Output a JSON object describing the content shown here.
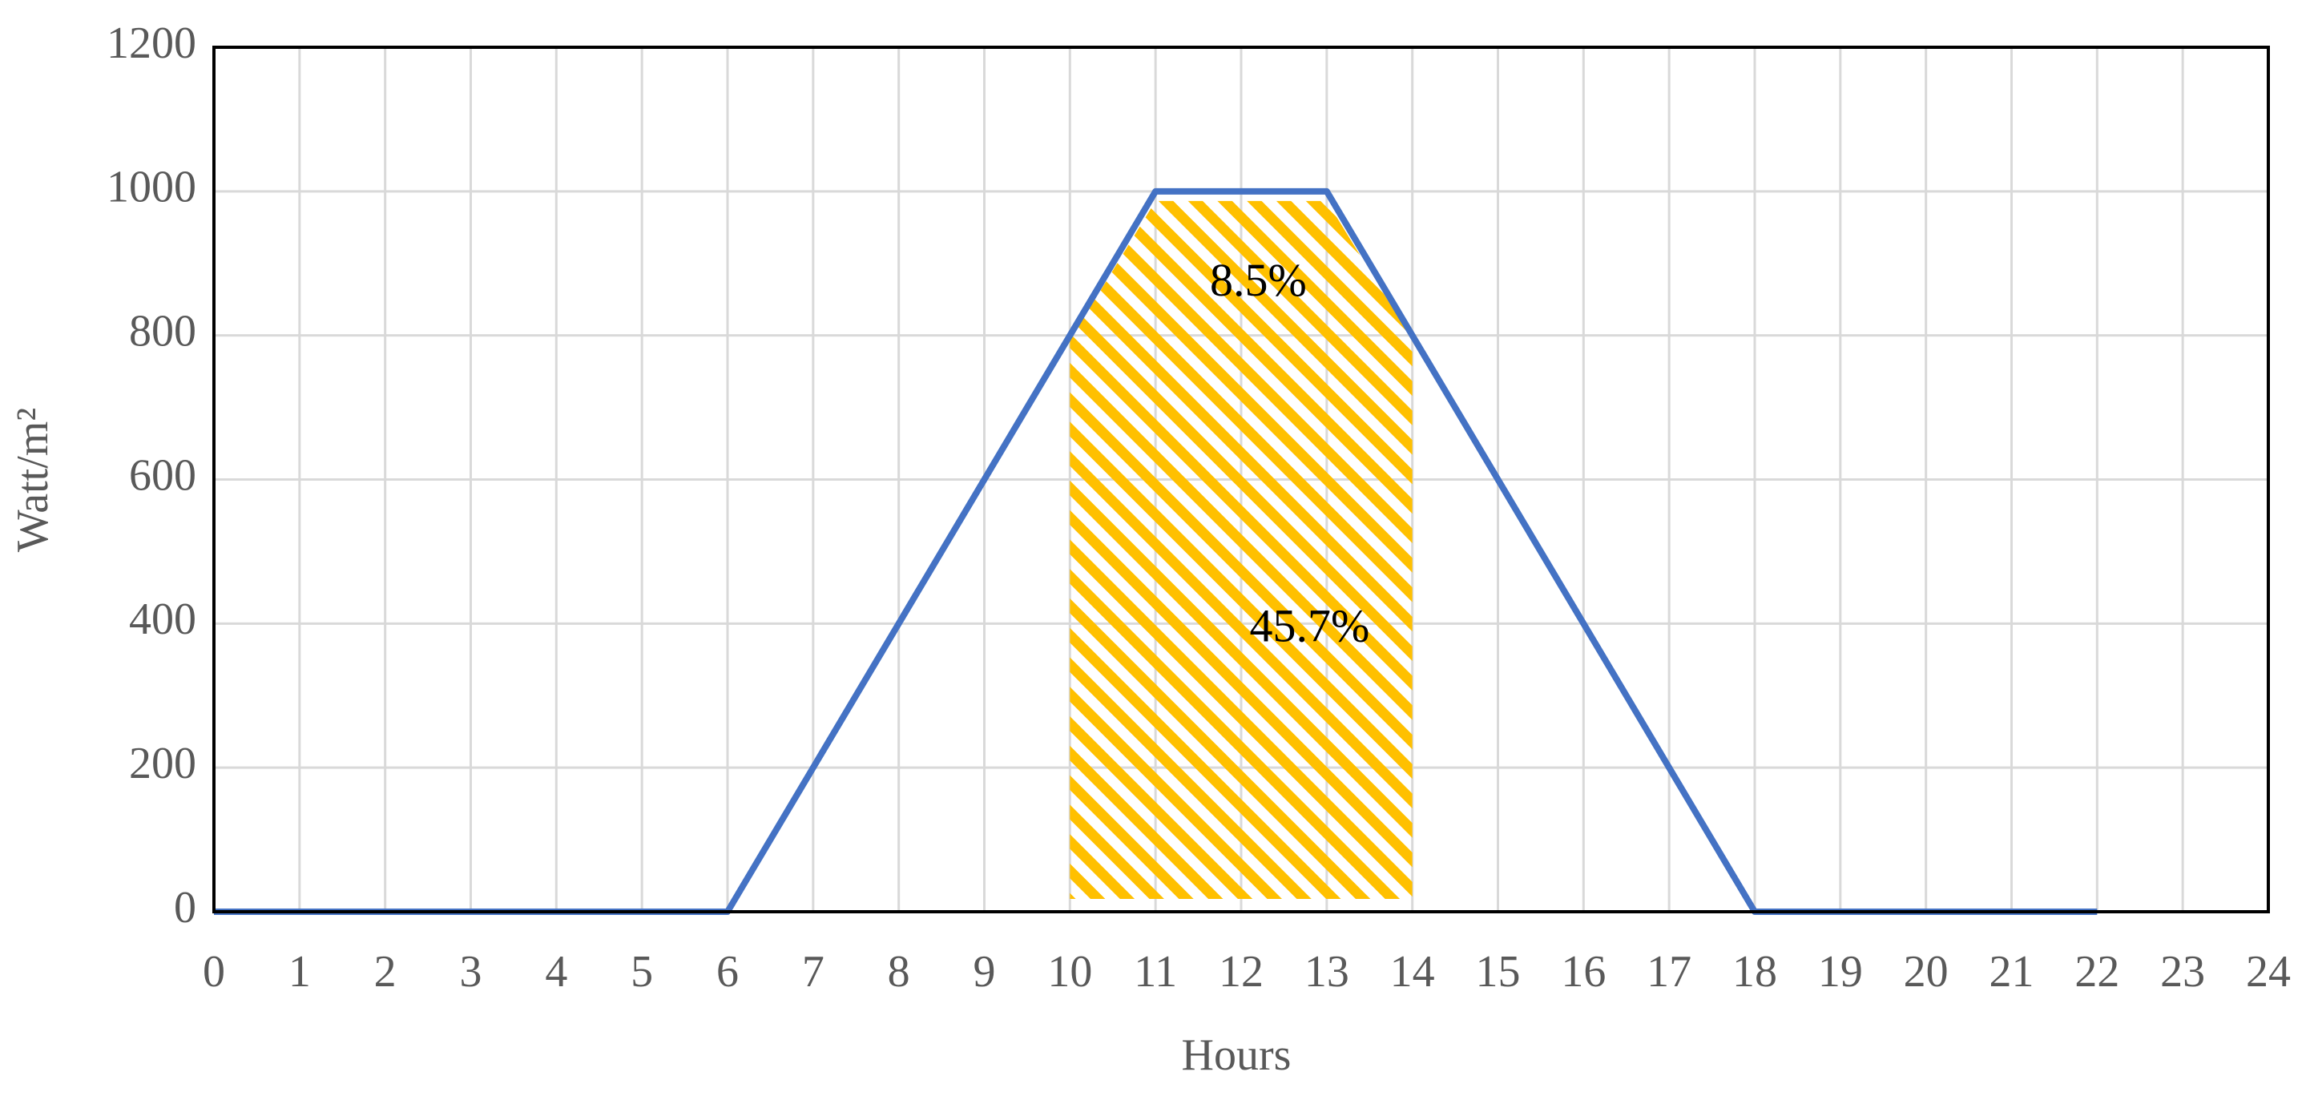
{
  "chart_data": {
    "type": "line",
    "x_label": "Hours",
    "y_label": "Watt/m²",
    "x": [
      0,
      6,
      11,
      13,
      18,
      22
    ],
    "series": [
      {
        "color": "#4472c4",
        "values": [
          0,
          0,
          1000,
          1000,
          0,
          0
        ]
      }
    ],
    "xlim": [
      0,
      24
    ],
    "xticks": [
      0,
      1,
      2,
      3,
      4,
      5,
      6,
      7,
      8,
      9,
      10,
      11,
      12,
      13,
      14,
      15,
      16,
      17,
      18,
      19,
      20,
      21,
      22,
      23,
      24
    ],
    "ylim": [
      0,
      1200
    ],
    "yticks": [
      0,
      200,
      400,
      600,
      800,
      1000,
      1200
    ],
    "grid": true,
    "highlight": {
      "xlim": [
        10,
        14
      ],
      "color": "#ffc000"
    },
    "annotations": [
      {
        "text": "8.5%",
        "x": 12.2,
        "y": 870
      },
      {
        "text": "45.7%",
        "x": 12.8,
        "y": 390
      }
    ]
  }
}
